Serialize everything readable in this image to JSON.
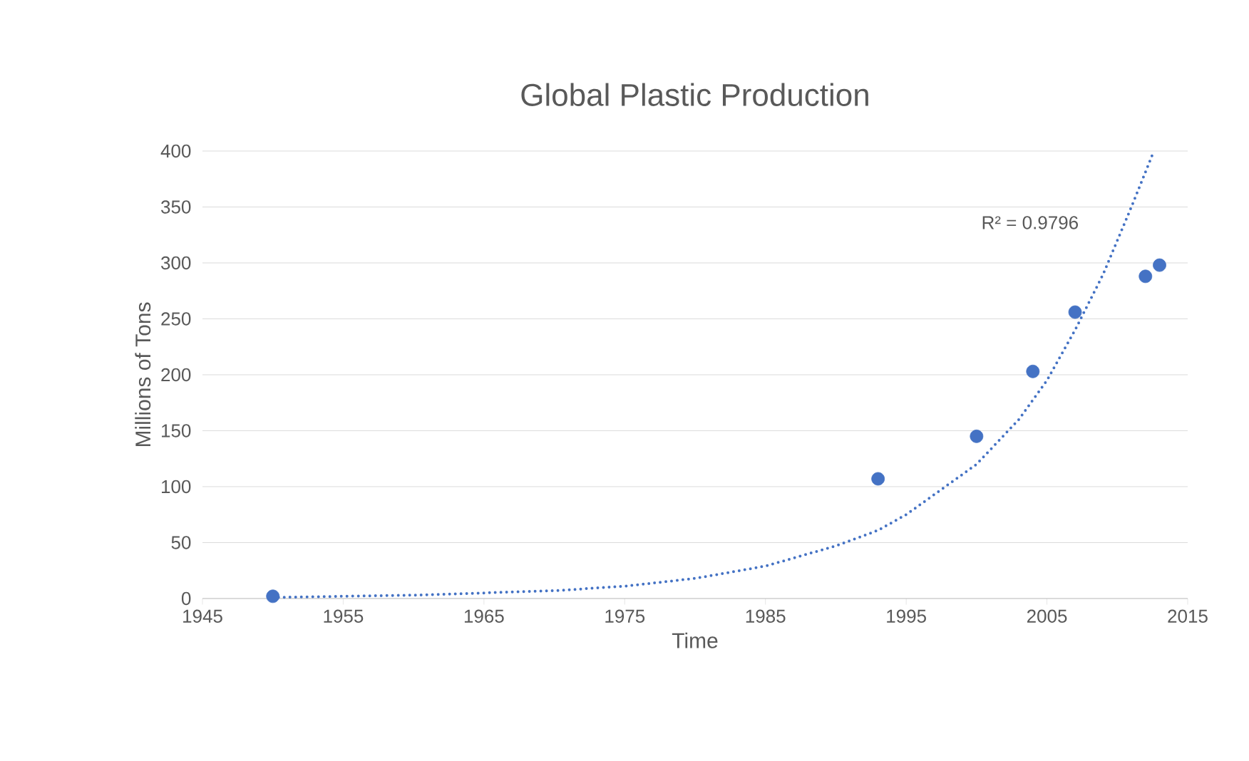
{
  "chart_data": {
    "type": "scatter",
    "title": "Global Plastic Production",
    "xlabel": "Time",
    "ylabel": "Millions of Tons",
    "xlim": [
      1945,
      2015
    ],
    "xticks": [
      1945,
      1955,
      1965,
      1975,
      1985,
      1995,
      2005,
      2015
    ],
    "ylim": [
      0,
      400
    ],
    "yticks": [
      0,
      50,
      100,
      150,
      200,
      250,
      300,
      350,
      400
    ],
    "grid": "y",
    "series": [
      {
        "color": "#4472c4",
        "marker": "circle",
        "x": [
          1950,
          1993,
          2000,
          2004,
          2007,
          2012,
          2013
        ],
        "values": [
          2,
          107,
          145,
          203,
          256,
          288,
          298
        ]
      },
      {
        "type": "line",
        "color": "#4472c4",
        "marker": "none",
        "line_style": "dotted",
        "x": [
          1950,
          1960,
          1970,
          1975,
          1980,
          1985,
          1990,
          1993,
          1995,
          2000,
          2003,
          2005,
          2007,
          2009,
          2011,
          2012.6
        ],
        "values": [
          1,
          3,
          7,
          11,
          18,
          29,
          47,
          61,
          75,
          120,
          160,
          195,
          240,
          290,
          350,
          400
        ]
      }
    ],
    "annotations": [
      "R² = 0.9796"
    ]
  }
}
